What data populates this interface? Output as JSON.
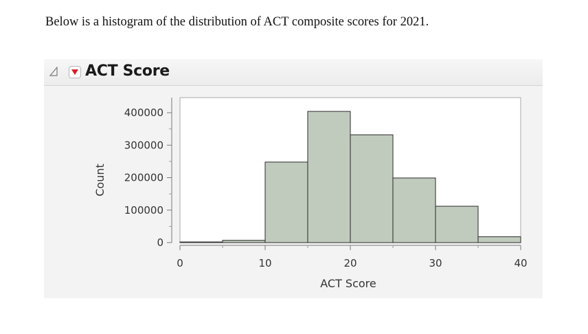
{
  "intro_text": "Below is a histogram of the distribution of ACT composite scores for 2021.",
  "panel": {
    "title": "ACT Score"
  },
  "chart_data": {
    "type": "bar",
    "title": "",
    "xlabel": "ACT Score",
    "ylabel": "Count",
    "bins": [
      [
        0,
        5
      ],
      [
        5,
        10
      ],
      [
        10,
        15
      ],
      [
        15,
        20
      ],
      [
        20,
        25
      ],
      [
        25,
        30
      ],
      [
        30,
        35
      ],
      [
        35,
        40
      ]
    ],
    "values": [
      2000,
      7000,
      248000,
      404000,
      332000,
      199000,
      112000,
      18000
    ],
    "xlim": [
      0,
      40
    ],
    "ylim": [
      0,
      450000
    ],
    "xticks": [
      0,
      10,
      20,
      30,
      40
    ],
    "yticks": [
      0,
      100000,
      200000,
      300000,
      400000
    ],
    "xtick_labels": [
      "0",
      "10",
      "20",
      "30",
      "40"
    ],
    "ytick_labels": [
      "0",
      "100000",
      "200000",
      "300000",
      "400000"
    ],
    "grid": false,
    "legend": "none",
    "bar_color": "#c0cbbd",
    "bar_edge_color": "#3a3a3a"
  }
}
